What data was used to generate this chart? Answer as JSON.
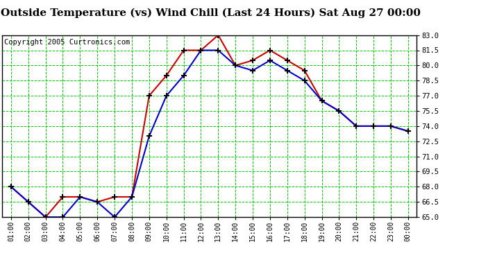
{
  "title": "Outside Temperature (vs) Wind Chill (Last 24 Hours) Sat Aug 27 00:00",
  "copyright": "Copyright 2005 Curtronics.com",
  "xlabels": [
    "01:00",
    "02:00",
    "03:00",
    "04:00",
    "05:00",
    "06:00",
    "07:00",
    "08:00",
    "09:00",
    "10:00",
    "11:00",
    "12:00",
    "13:00",
    "14:00",
    "15:00",
    "16:00",
    "17:00",
    "18:00",
    "19:00",
    "20:00",
    "21:00",
    "22:00",
    "23:00",
    "00:00"
  ],
  "outside_temp": [
    68.0,
    66.5,
    65.0,
    65.0,
    67.0,
    66.5,
    65.0,
    67.0,
    73.0,
    77.0,
    79.0,
    81.5,
    81.5,
    80.0,
    79.5,
    80.5,
    79.5,
    78.5,
    76.5,
    75.5,
    74.0,
    74.0,
    74.0,
    73.5
  ],
  "wind_chill": [
    68.0,
    66.5,
    65.0,
    67.0,
    67.0,
    66.5,
    67.0,
    67.0,
    77.0,
    79.0,
    81.5,
    81.5,
    83.0,
    80.0,
    80.5,
    81.5,
    80.5,
    79.5,
    76.5,
    75.5,
    74.0,
    74.0,
    74.0,
    73.5
  ],
  "temp_color": "#0000cc",
  "chill_color": "#cc0000",
  "bg_color": "#ffffff",
  "grid_color": "#00cc00",
  "ylim": [
    65.0,
    83.0
  ],
  "yticks": [
    65.0,
    66.5,
    68.0,
    69.5,
    71.0,
    72.5,
    74.0,
    75.5,
    77.0,
    78.5,
    80.0,
    81.5,
    83.0
  ],
  "title_fontsize": 11,
  "copyright_fontsize": 7.5,
  "tick_fontsize": 7,
  "ytick_fontsize": 7.5
}
